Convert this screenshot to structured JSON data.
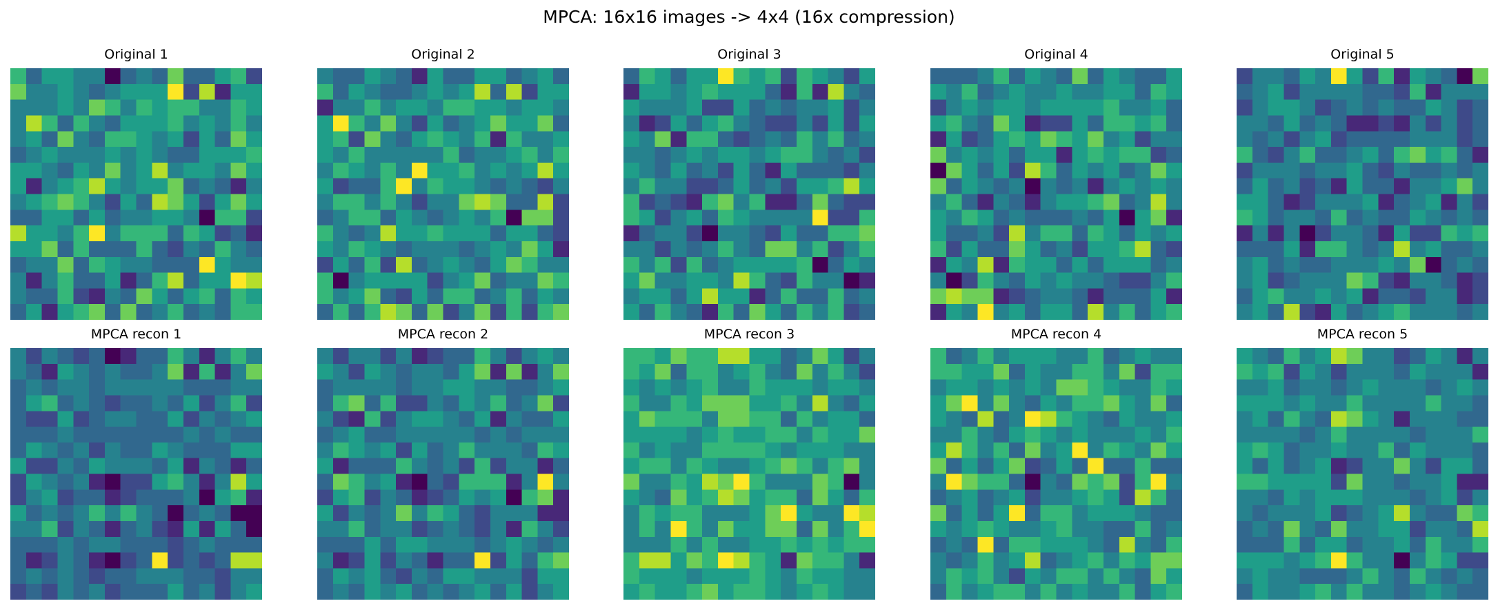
{
  "title": "MPCA: 16x16 images -> 4x4 (16x compression)",
  "colormap": "viridis",
  "colormap_levels": [
    "#440154",
    "#482878",
    "#3e4a89",
    "#31688e",
    "#26828e",
    "#1f9e89",
    "#35b779",
    "#6ece58",
    "#b5de2b",
    "#fde725"
  ],
  "chart_data": [
    {
      "type": "heatmap",
      "title": "Original 1",
      "value_scale": "0-9 quantized viridis level",
      "rows": [
        "6355440343733562",
        "7445434555928155",
        "4445476465664465",
        "4863643555645464",
        "4537436654525375",
        "3454445454335556",
        "5543547458455475",
        "5145685455734314",
        "4567642538752575",
        "3355353445540662",
        "8554694666365231",
        "5573633363243643",
        "3447365443339544",
        "4146335136835598",
        "4336214375356365",
        "3515673734634366"
      ]
    },
    {
      "type": "heatmap",
      "title": "Original 2",
      "value_scale": "0-9 quantized viridis level",
      "rows": [
        "4335431533553453",
        "6354334545838255",
        "1446455466554554",
        "5964742534575573",
        "5627435654616445",
        "5464444463445646",
        "4654649556454585",
        "5233694655434324",
        "4664642447873382",
        "3466354345460772",
        "6434855655535532",
        "5465434443454751",
        "2536283454357644",
        "6045555245734476",
        "6457325366346354",
        "3636873724726267"
      ]
    },
    {
      "type": "heatmap",
      "title": "Original 3",
      "value_scale": "0-9 quantized viridis level",
      "rows": [
        "3653559656265425",
        "1554565553161843",
        "5444522534344524",
        "4125356432242525",
        "5471663234364634",
        "4434545545664342",
        "5435342531533324",
        "4644223534255685",
        "6232167461137322",
        "6524536544449226",
        "1344204432533667",
        "4424346437746246",
        "6462634555560354",
        "5744554863264401",
        "4553585513633634",
        "5364316375364623"
      ]
    },
    {
      "type": "heatmap",
      "title": "Original 4",
      "value_scale": "0-9 quantized viridis level",
      "rows": [
        "3334635437354335",
        "5463454454455365",
        "2454554555564453",
        "5643751225366563",
        "1523565765745244",
        "7454535515656623",
        "0753528635453475",
        "7354340434145454",
        "4631431455673484",
        "5465343334350571",
        "5334284663653545",
        "6253375342556832",
        "1548165535355534",
        "4026435454432246",
        "7877123443133351",
        "1549453553846356"
      ]
    },
    {
      "type": "heatmap",
      "title": "Original 5",
      "value_scale": "0-9 quantized viridis level",
      "rows": [
        "2443549526154307",
        "3452444433261444",
        "2455423434335423",
        "4435343112142423",
        "4342452333344423",
        "6324633453675631",
        "2444344532433434",
        "3534231533144574",
        "5531244451345142",
        "6534436343354343",
        "1414024431522656",
        "3335166434845334",
        "4534334445470343",
        "4523444762144312",
        "3564454513324412",
        "4538215345644434"
      ]
    },
    {
      "type": "heatmap",
      "title": "MPCA recon 1",
      "value_scale": "0-9 quantized viridis level",
      "rows": [
        "4243230133641464",
        "4315434334716147",
        "3434434444433344",
        "3563432334352462",
        "3225234433524345",
        "3334333333343433",
        "3543424335433355",
        "5224354443514313",
        "2543410225641485",
        "2452331233340561",
        "5343464643034300",
        "4462431342151530",
        "3334344333234333",
        "3124310239232388",
        "3434323344433244",
        "2324342333534245"
      ]
    },
    {
      "type": "heatmap",
      "title": "MPCA recon 2",
      "value_scale": "0-9 quantized viridis level",
      "rows": [
        "4244241233642454",
        "5425434435717147",
        "3444434455443345",
        "3673622435463472",
        "4216245543514335",
        "3453344444343444",
        "4654525346444365",
        "5133364342624413",
        "3764510326661494",
        "2562431235450671",
        "5243474653244411",
        "4463442343241642",
        "3335355444345434",
        "4125243133925367",
        "3545324355444255",
        "3435453434535245"
      ]
    },
    {
      "type": "heatmap",
      "title": "MPCA recon 3",
      "value_scale": "0-9 quantized viridis level",
      "rows": [
        "6657668855347524",
        "6573664564374642",
        "5454564465554554",
        "6446577755648435",
        "5766647766364553",
        "5555456556646557",
        "6454466665455544",
        "5664654456764674",
        "7446587964447604",
        "5437568756637536",
        "4656644457954498",
        "4649647557737469",
        "4446464455656566",
        "6885769865176641",
        "6555455565465544",
        "5655675665456544"
      ]
    },
    {
      "type": "heatmap",
      "title": "MPCA recon 4",
      "value_scale": "0-9 quantized viridis level",
      "rows": [
        "6346455544634544",
        "6655735446647266",
        "4554545477654465",
        "5794743546675473",
        "5438349865435445",
        "4464356545444546",
        "5864637459465475",
        "7353572353933633",
        "4976630437672694",
        "3453452445652863",
        "7353593664555433",
        "5456544564433634",
        "3439366555438436",
        "4346458345646577",
        "4656425466464375",
        "3645664645446356"
      ]
    },
    {
      "type": "heatmap",
      "title": "MPCA recon 5",
      "value_scale": "0-9 quantized viridis level",
      "rows": [
        "5436458744235414",
        "6562542444354441",
        "4453443454443454",
        "5554544644446443",
        "4536438754144433",
        "4444346444434446",
        "5653445446354443",
        "5353451244742553",
        "6655552744344511",
        "4435455544434524",
        "4344452345843376",
        "3437437445524438",
        "3336355344536446",
        "5554569644046522",
        "4544333464364343",
        "3544564644345433"
      ]
    }
  ]
}
